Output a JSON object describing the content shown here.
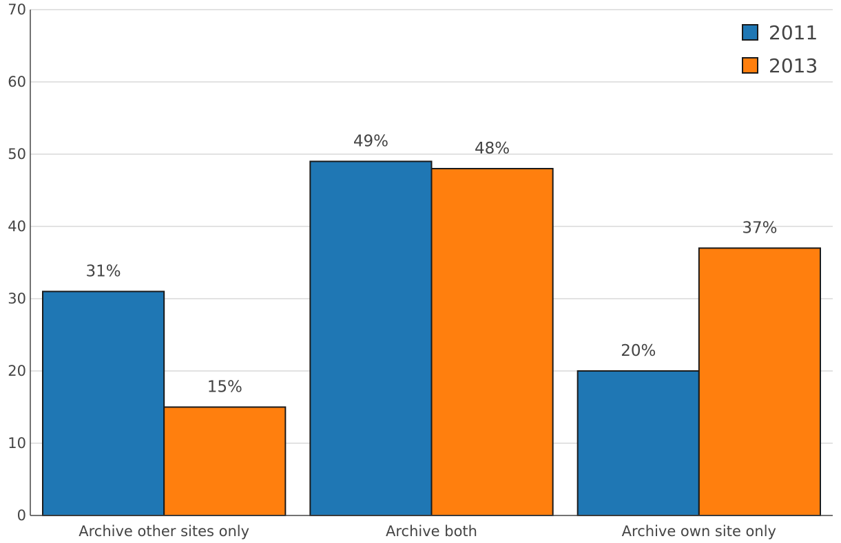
{
  "chart_data": {
    "type": "bar",
    "categories": [
      "Archive other sites only",
      "Archive both",
      "Archive own site only"
    ],
    "series": [
      {
        "name": "2011",
        "values": [
          31,
          49,
          20
        ],
        "labels": [
          "31%",
          "49%",
          "20%"
        ],
        "color": "#1f77b4"
      },
      {
        "name": "2013",
        "values": [
          15,
          48,
          37
        ],
        "labels": [
          "15%",
          "48%",
          "37%"
        ],
        "color": "#ff7f0e"
      }
    ],
    "ylim": [
      0,
      70
    ],
    "yticks": [
      0,
      10,
      20,
      30,
      40,
      50,
      60,
      70
    ],
    "grid": true,
    "legend_position": "top-right",
    "title": "",
    "xlabel": "",
    "ylabel": ""
  }
}
